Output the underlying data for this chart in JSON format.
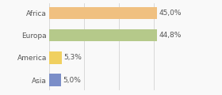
{
  "categories": [
    "Africa",
    "Europa",
    "America",
    "Asia"
  ],
  "values": [
    45.0,
    44.8,
    5.3,
    5.0
  ],
  "labels": [
    "45,0%",
    "44,8%",
    "5,3%",
    "5,0%"
  ],
  "bar_colors": [
    "#f0c080",
    "#b5c98a",
    "#f0d060",
    "#7b8ec8"
  ],
  "background_color": "#f9f9f9",
  "xlim": [
    0,
    58
  ],
  "label_fontsize": 6.5,
  "tick_fontsize": 6.5,
  "bar_height": 0.55,
  "grid_lines": [
    0,
    14.5,
    29,
    43.5,
    58
  ]
}
